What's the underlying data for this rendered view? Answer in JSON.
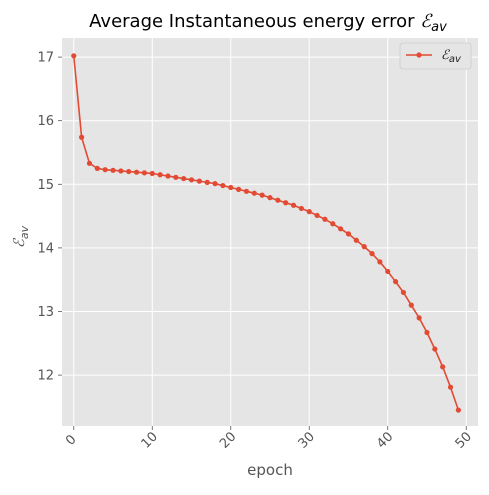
{
  "chart_data": {
    "type": "line",
    "title": "Average Instantaneous energy error ℰₐᵥ",
    "title_parts": {
      "prefix": "Average Instantaneous energy error ",
      "symbol": "ℰ",
      "subscript": "av"
    },
    "xlabel": "epoch",
    "ylabel": {
      "symbol": "ℰ",
      "subscript": "av"
    },
    "xlim": [
      -1.5,
      51.5
    ],
    "ylim": [
      11.2,
      17.3
    ],
    "xticks": [
      0,
      10,
      20,
      30,
      40,
      50
    ],
    "yticks": [
      12,
      13,
      14,
      15,
      16,
      17
    ],
    "grid": true,
    "legend_position": "upper right",
    "style": "ggplot",
    "series": [
      {
        "name": "ℰₐᵥ",
        "name_parts": {
          "symbol": "ℰ",
          "subscript": "av"
        },
        "color": "#E24A33",
        "marker": "circle",
        "x": [
          0,
          1,
          2,
          3,
          4,
          5,
          6,
          7,
          8,
          9,
          10,
          11,
          12,
          13,
          14,
          15,
          16,
          17,
          18,
          19,
          20,
          21,
          22,
          23,
          24,
          25,
          26,
          27,
          28,
          29,
          30,
          31,
          32,
          33,
          34,
          35,
          36,
          37,
          38,
          39,
          40,
          41,
          42,
          43,
          44,
          45,
          46,
          47,
          48,
          49
        ],
        "values": [
          17.02,
          15.74,
          15.33,
          15.25,
          15.23,
          15.22,
          15.21,
          15.2,
          15.19,
          15.18,
          15.17,
          15.15,
          15.13,
          15.11,
          15.09,
          15.07,
          15.05,
          15.03,
          15.01,
          14.98,
          14.95,
          14.92,
          14.89,
          14.86,
          14.83,
          14.79,
          14.75,
          14.71,
          14.67,
          14.62,
          14.57,
          14.51,
          14.45,
          14.38,
          14.3,
          14.22,
          14.12,
          14.02,
          13.91,
          13.78,
          13.63,
          13.47,
          13.3,
          13.1,
          12.9,
          12.67,
          12.41,
          12.13,
          11.81,
          11.45
        ]
      }
    ]
  },
  "colors": {
    "plot_background": "#E5E5E5",
    "grid": "#FFFFFF",
    "line": "#E24A33"
  }
}
